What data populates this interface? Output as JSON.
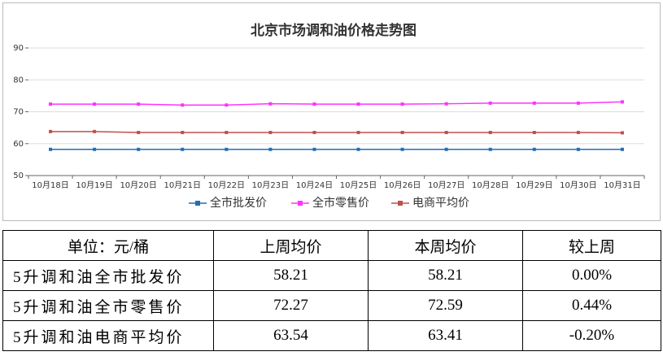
{
  "chart_data": {
    "type": "line",
    "title": "北京市场调和油价格走势图",
    "categories": [
      "10月18日",
      "10月19日",
      "10月20日",
      "10月21日",
      "10月22日",
      "10月23日",
      "10月24日",
      "10月25日",
      "10月26日",
      "10月27日",
      "10月28日",
      "10月29日",
      "10月30日",
      "10月31日"
    ],
    "series": [
      {
        "name": "全市批发价",
        "color": "#1f6fb5",
        "values": [
          58.21,
          58.21,
          58.21,
          58.21,
          58.21,
          58.21,
          58.21,
          58.21,
          58.21,
          58.21,
          58.21,
          58.21,
          58.21,
          58.21
        ]
      },
      {
        "name": "全市零售价",
        "color": "#ff33ff",
        "values": [
          72.4,
          72.4,
          72.4,
          72.1,
          72.1,
          72.5,
          72.4,
          72.4,
          72.4,
          72.5,
          72.7,
          72.7,
          72.7,
          73.1
        ]
      },
      {
        "name": "电商平均价",
        "color": "#c0504d",
        "values": [
          63.8,
          63.8,
          63.5,
          63.5,
          63.5,
          63.5,
          63.5,
          63.5,
          63.5,
          63.5,
          63.5,
          63.5,
          63.5,
          63.4
        ]
      }
    ],
    "ylim": [
      50,
      90
    ],
    "yticks": [
      50,
      60,
      70,
      80,
      90
    ],
    "grid": true,
    "legend": "bottom"
  },
  "table": {
    "header": [
      "单位：元/桶",
      "上周均价",
      "本周均价",
      "较上周"
    ],
    "rows": [
      [
        "5升调和油全市批发价",
        "58.21",
        "58.21",
        "0.00%"
      ],
      [
        "5升调和油全市零售价",
        "72.27",
        "72.59",
        "0.44%"
      ],
      [
        "5升调和油电商平均价",
        "63.54",
        "63.41",
        "-0.20%"
      ]
    ]
  }
}
